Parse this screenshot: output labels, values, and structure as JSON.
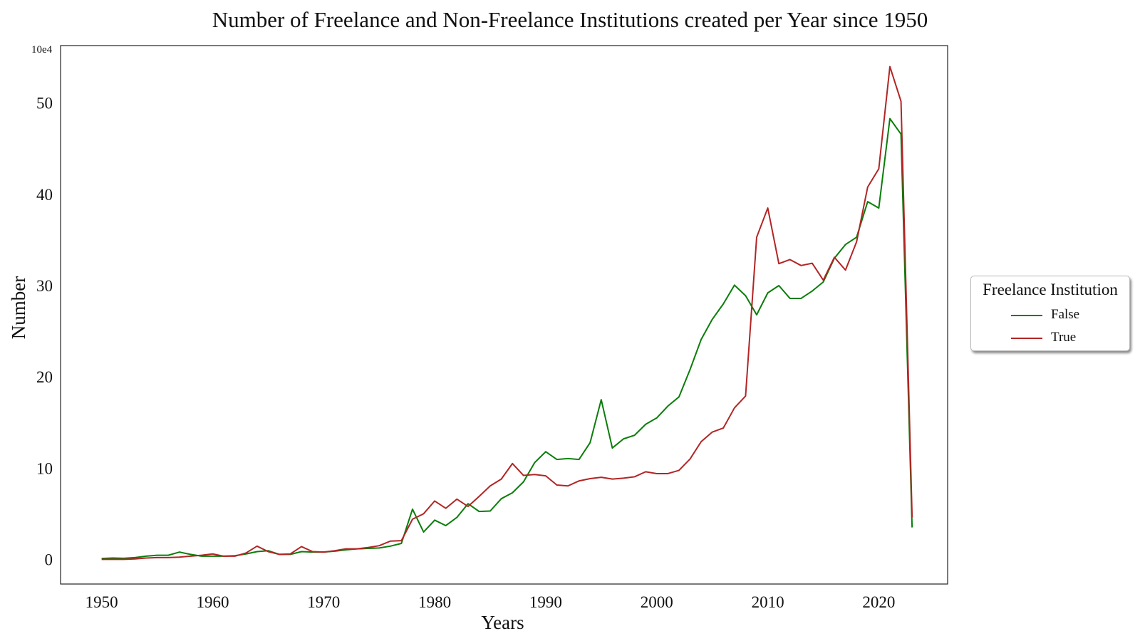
{
  "chart_data": {
    "type": "line",
    "title": "Number of Freelance and Non-Freelance Institutions created per Year since 1950",
    "xlabel": "Years",
    "ylabel": "Number",
    "y_multiplier_label": "10e4",
    "xlim": [
      1946.3,
      2026.2
    ],
    "ylim": [
      -2.7,
      56.3
    ],
    "x_ticks": [
      1950,
      1960,
      1970,
      1980,
      1990,
      2000,
      2010,
      2020
    ],
    "y_ticks": [
      0,
      10,
      20,
      30,
      40,
      50
    ],
    "grid": false,
    "legend": {
      "title": "Freelance Institution",
      "placement": "center-right outside"
    },
    "x": [
      1950,
      1951,
      1952,
      1953,
      1954,
      1955,
      1956,
      1957,
      1958,
      1959,
      1960,
      1961,
      1962,
      1963,
      1964,
      1965,
      1966,
      1967,
      1968,
      1969,
      1970,
      1971,
      1972,
      1973,
      1974,
      1975,
      1976,
      1977,
      1978,
      1979,
      1980,
      1981,
      1982,
      1983,
      1984,
      1985,
      1986,
      1987,
      1988,
      1989,
      1990,
      1991,
      1992,
      1993,
      1994,
      1995,
      1996,
      1997,
      1998,
      1999,
      2000,
      2001,
      2002,
      2003,
      2004,
      2005,
      2006,
      2007,
      2008,
      2009,
      2010,
      2011,
      2012,
      2013,
      2014,
      2015,
      2016,
      2017,
      2018,
      2019,
      2020,
      2021,
      2022,
      2023
    ],
    "series": [
      {
        "name": "False",
        "color": "#0a7d0a",
        "values": [
          0.1,
          0.15,
          0.12,
          0.2,
          0.35,
          0.45,
          0.45,
          0.8,
          0.55,
          0.35,
          0.35,
          0.35,
          0.4,
          0.6,
          0.85,
          0.95,
          0.55,
          0.55,
          0.85,
          0.8,
          0.8,
          0.9,
          1.05,
          1.15,
          1.2,
          1.25,
          1.45,
          1.75,
          5.5,
          3.0,
          4.3,
          3.7,
          4.6,
          6.1,
          5.25,
          5.3,
          6.65,
          7.3,
          8.5,
          10.6,
          11.8,
          10.95,
          11.05,
          10.95,
          12.8,
          17.5,
          12.2,
          13.2,
          13.6,
          14.8,
          15.5,
          16.8,
          17.8,
          20.8,
          24.1,
          26.3,
          28.0,
          30.05,
          28.9,
          26.8,
          29.2,
          30.0,
          28.6,
          28.6,
          29.4,
          30.4,
          33.0,
          34.5,
          35.3,
          39.2,
          38.5,
          48.3,
          46.6,
          3.5
        ]
      },
      {
        "name": "True",
        "color": "#b22525",
        "values": [
          0.0,
          0.0,
          0.0,
          0.05,
          0.15,
          0.2,
          0.2,
          0.25,
          0.35,
          0.45,
          0.6,
          0.35,
          0.35,
          0.7,
          1.45,
          0.85,
          0.55,
          0.6,
          1.4,
          0.85,
          0.8,
          0.95,
          1.15,
          1.15,
          1.3,
          1.5,
          2.0,
          2.05,
          4.4,
          5.0,
          6.4,
          5.6,
          6.6,
          5.8,
          6.9,
          8.05,
          8.8,
          10.5,
          9.2,
          9.3,
          9.15,
          8.15,
          8.05,
          8.6,
          8.85,
          9.0,
          8.8,
          8.9,
          9.05,
          9.6,
          9.4,
          9.4,
          9.75,
          11.0,
          12.9,
          13.95,
          14.4,
          16.6,
          17.9,
          35.3,
          38.5,
          32.4,
          32.85,
          32.2,
          32.45,
          30.6,
          33.1,
          31.7,
          34.8,
          40.8,
          42.8,
          54.0,
          50.2,
          4.6
        ]
      }
    ]
  }
}
